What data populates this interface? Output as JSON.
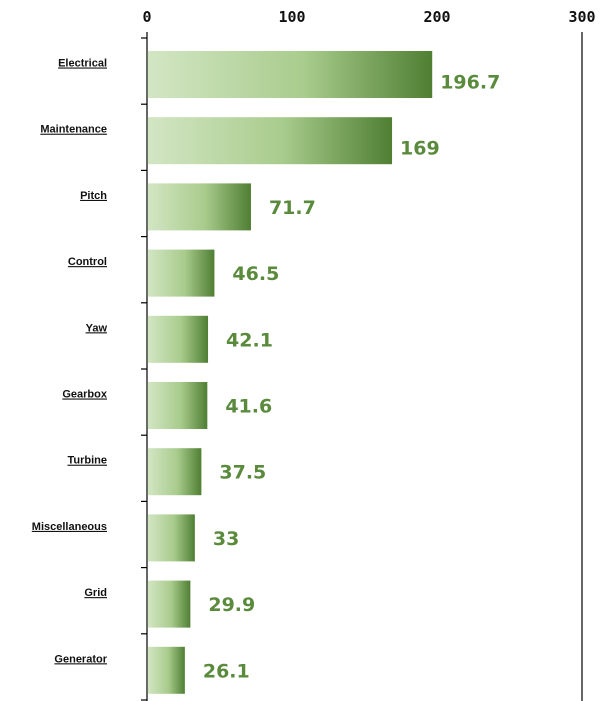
{
  "chart_data": {
    "type": "bar",
    "orientation": "horizontal",
    "categories": [
      "Electrical",
      "Maintenance",
      "Pitch",
      "Control",
      "Yaw",
      "Gearbox",
      "Turbine",
      "Miscellaneous",
      "Grid",
      "Generator"
    ],
    "values": [
      196.7,
      169,
      71.7,
      46.5,
      42.1,
      41.6,
      37.5,
      33,
      29.9,
      26.1
    ],
    "value_labels": [
      "196.7",
      "169",
      "71.7",
      "46.5",
      "42.1",
      "41.6",
      "37.5",
      "33",
      "29.9",
      "26.1"
    ],
    "title": "",
    "xlabel": "",
    "ylabel": "",
    "xlim": [
      0,
      300
    ],
    "x_ticks": [
      0,
      100,
      200,
      300
    ],
    "x_tick_labels": [
      "0",
      "100",
      "200",
      "300"
    ],
    "x_axis_position": "top",
    "grid": false,
    "legend": "none",
    "colors": {
      "bar_light": "#d3e6c4",
      "bar_dark": "#4f7f33",
      "value_label": "#5a8a3c",
      "axis": "#000000"
    }
  }
}
